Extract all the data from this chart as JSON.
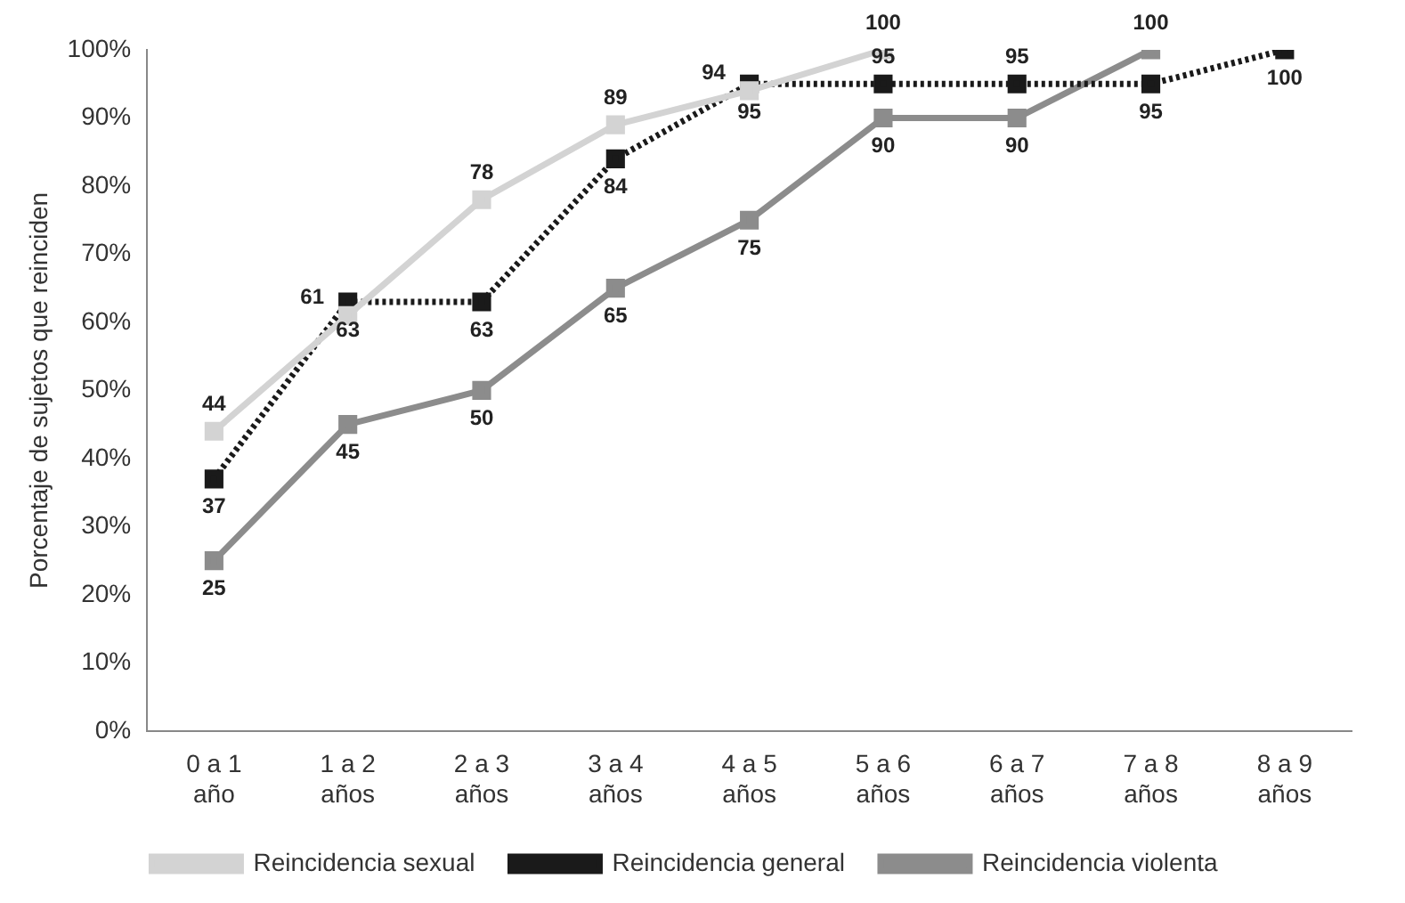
{
  "chart_data": {
    "type": "line",
    "ylabel": "Porcentaje de sujetos que reinciden",
    "categories": [
      [
        "0 a 1",
        "año"
      ],
      [
        "1 a 2",
        "años"
      ],
      [
        "2 a 3",
        "años"
      ],
      [
        "3 a 4",
        "años"
      ],
      [
        "4 a 5",
        "años"
      ],
      [
        "5 a 6",
        "años"
      ],
      [
        "6 a 7",
        "años"
      ],
      [
        "7 a 8",
        "años"
      ],
      [
        "8 a 9",
        "años"
      ]
    ],
    "series": [
      {
        "name": "Reincidencia sexual",
        "color": "#d3d3d3",
        "line_style": "solid",
        "values": [
          44,
          61,
          78,
          89,
          94,
          100,
          null,
          null,
          null
        ]
      },
      {
        "name": "Reincidencia general",
        "color": "#1a1a1a",
        "line_style": "dotted",
        "values": [
          37,
          63,
          63,
          84,
          95,
          95,
          95,
          95,
          100
        ]
      },
      {
        "name": "Reincidencia violenta",
        "color": "#8c8c8c",
        "line_style": "solid",
        "values": [
          25,
          45,
          50,
          65,
          75,
          90,
          90,
          100,
          null
        ]
      }
    ],
    "ylim": [
      0,
      100
    ],
    "yticks": [
      {
        "value": 0,
        "label": "0%"
      },
      {
        "value": 10,
        "label": "10%"
      },
      {
        "value": 20,
        "label": "20%"
      },
      {
        "value": 30,
        "label": "30%"
      },
      {
        "value": 40,
        "label": "40%"
      },
      {
        "value": 50,
        "label": "50%"
      },
      {
        "value": 60,
        "label": "60%"
      },
      {
        "value": 70,
        "label": "70%"
      },
      {
        "value": 80,
        "label": "80%"
      },
      {
        "value": 90,
        "label": "90%"
      },
      {
        "value": 100,
        "label": "100%"
      }
    ],
    "grid": false,
    "legend": "bottom",
    "marker": "square",
    "data_labels": true
  }
}
